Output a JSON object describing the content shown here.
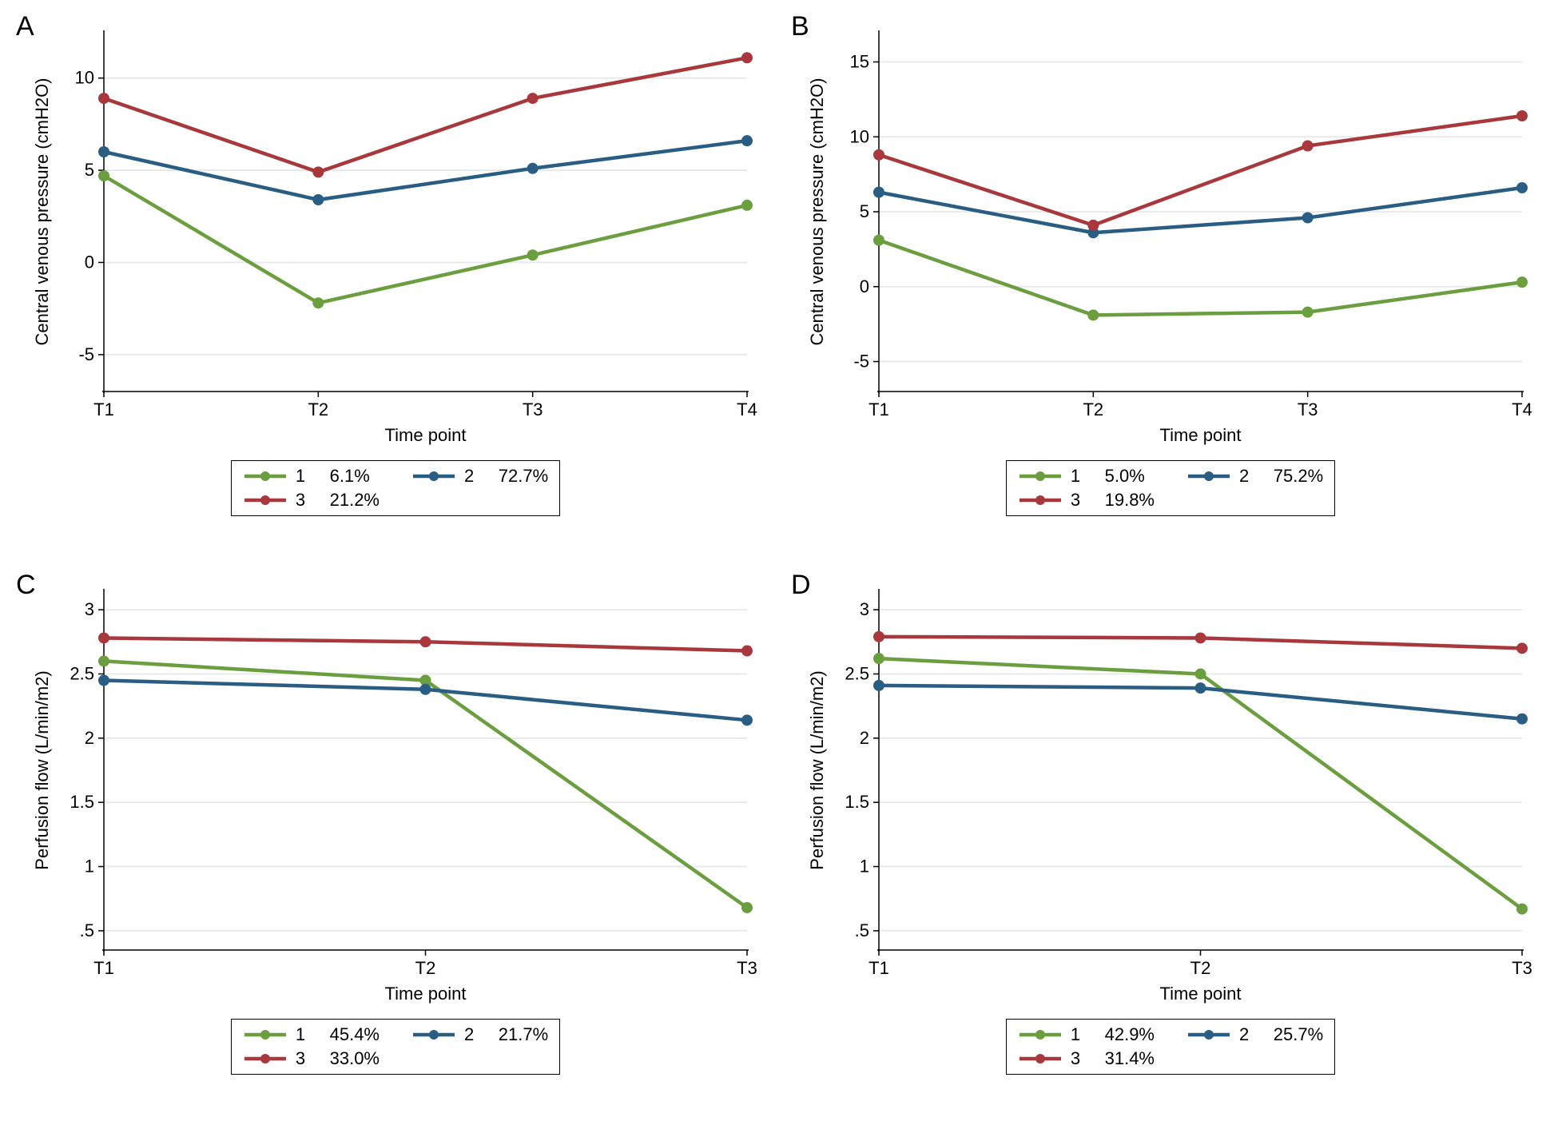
{
  "global": {
    "font_family": "Arial",
    "axis_label_fontsize": 22,
    "tick_fontsize": 22,
    "panel_label_fontsize": 34,
    "colors": {
      "series1": "#6b9e3f",
      "series2": "#2a5d84",
      "series3": "#a8383b",
      "plot_bg": "#ffffff",
      "grid": "#e8e8e8",
      "axis_line": "#000000",
      "text": "#000000"
    },
    "line_width": 4.5,
    "marker_radius": 7
  },
  "panels": {
    "A": {
      "label": "A",
      "type": "line",
      "xlabel": "Time point",
      "ylabel": "Central venous pressure (cmH2O)",
      "x_categories": [
        "T1",
        "T2",
        "T3",
        "T4"
      ],
      "ylim": [
        -7,
        12.5
      ],
      "yticks": [
        -5,
        0,
        5,
        10
      ],
      "ytick_labels": [
        "-5",
        "0",
        "5",
        "10"
      ],
      "series": [
        {
          "id": "1",
          "label": "1     6.1%",
          "color": "#6b9e3f",
          "y": [
            4.7,
            -2.2,
            0.4,
            3.1
          ]
        },
        {
          "id": "2",
          "label": "2     72.7%",
          "color": "#2a5d84",
          "y": [
            6.0,
            3.4,
            5.1,
            6.6
          ]
        },
        {
          "id": "3",
          "label": "3     21.2%",
          "color": "#a8383b",
          "y": [
            8.9,
            4.9,
            8.9,
            11.1
          ]
        }
      ]
    },
    "B": {
      "label": "B",
      "type": "line",
      "xlabel": "Time point",
      "ylabel": "Central venous pressure (cmH2O)",
      "x_categories": [
        "T1",
        "T2",
        "T3",
        "T4"
      ],
      "ylim": [
        -7,
        17
      ],
      "yticks": [
        -5,
        0,
        5,
        10,
        15
      ],
      "ytick_labels": [
        "-5",
        "0",
        "5",
        "10",
        "15"
      ],
      "series": [
        {
          "id": "1",
          "label": "1     5.0%",
          "color": "#6b9e3f",
          "y": [
            3.1,
            -1.9,
            -1.7,
            0.3
          ]
        },
        {
          "id": "2",
          "label": "2     75.2%",
          "color": "#2a5d84",
          "y": [
            6.3,
            3.6,
            4.6,
            6.6
          ]
        },
        {
          "id": "3",
          "label": "3     19.8%",
          "color": "#a8383b",
          "y": [
            8.8,
            4.1,
            9.4,
            11.4
          ]
        }
      ]
    },
    "C": {
      "label": "C",
      "type": "line",
      "xlabel": "Time point",
      "ylabel": "Perfusion flow (L/min/m2)",
      "x_categories": [
        "T1",
        "T2",
        "T3"
      ],
      "ylim": [
        0.35,
        3.15
      ],
      "yticks": [
        0.5,
        1,
        1.5,
        2,
        2.5,
        3
      ],
      "ytick_labels": [
        ".5",
        "1",
        "1.5",
        "2",
        "2.5",
        "3"
      ],
      "series": [
        {
          "id": "1",
          "label": "1     45.4%",
          "color": "#6b9e3f",
          "y": [
            2.6,
            2.45,
            0.68
          ]
        },
        {
          "id": "2",
          "label": "2     21.7%",
          "color": "#2a5d84",
          "y": [
            2.45,
            2.38,
            2.14
          ]
        },
        {
          "id": "3",
          "label": "3     33.0%",
          "color": "#a8383b",
          "y": [
            2.78,
            2.75,
            2.68
          ]
        }
      ]
    },
    "D": {
      "label": "D",
      "type": "line",
      "xlabel": "Time point",
      "ylabel": "Perfusion flow (L/min/m2)",
      "x_categories": [
        "T1",
        "T2",
        "T3"
      ],
      "ylim": [
        0.35,
        3.15
      ],
      "yticks": [
        0.5,
        1,
        1.5,
        2,
        2.5,
        3
      ],
      "ytick_labels": [
        ".5",
        "1",
        "1.5",
        "2",
        "2.5",
        "3"
      ],
      "series": [
        {
          "id": "1",
          "label": "1     42.9%",
          "color": "#6b9e3f",
          "y": [
            2.62,
            2.5,
            0.67
          ]
        },
        {
          "id": "2",
          "label": "2     25.7%",
          "color": "#2a5d84",
          "y": [
            2.41,
            2.39,
            2.15
          ]
        },
        {
          "id": "3",
          "label": "3     31.4%",
          "color": "#a8383b",
          "y": [
            2.79,
            2.78,
            2.7
          ]
        }
      ]
    }
  }
}
